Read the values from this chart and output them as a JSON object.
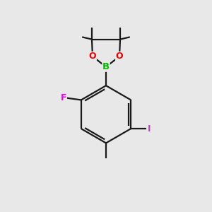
{
  "background_color": "#e8e8e8",
  "bond_color": "#1a1a1a",
  "atom_colors": {
    "B": "#00bb00",
    "O": "#ee0000",
    "F": "#ee00ee",
    "I": "#bb44bb",
    "C": "#1a1a1a"
  },
  "figsize": [
    3.0,
    3.0
  ],
  "dpi": 100,
  "lw": 1.6
}
